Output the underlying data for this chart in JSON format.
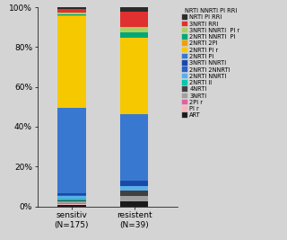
{
  "categories": [
    "sensitiv\n(N=175)",
    "resistent\n(N=39)"
  ],
  "legend_title": "NRTI NNRTI PI RRI",
  "segments_bottom_to_top": [
    {
      "label": "ART",
      "color": "#1a1a1a",
      "s": 0.6,
      "r": 2.6
    },
    {
      "label": "PI r",
      "color": "#f5b8c0",
      "s": 0.6,
      "r": 0.0
    },
    {
      "label": "2PI r",
      "color": "#e060a0",
      "s": 0.6,
      "r": 0.0
    },
    {
      "label": "3NRTI",
      "color": "#a0a0a0",
      "s": 0.6,
      "r": 2.6
    },
    {
      "label": "4NRTI",
      "color": "#404040",
      "s": 0.6,
      "r": 2.6
    },
    {
      "label": "2NRTI II",
      "color": "#00c8b0",
      "s": 1.1,
      "r": 0.0
    },
    {
      "label": "2NRTI NNRTI",
      "color": "#5aaeea",
      "s": 1.1,
      "r": 2.6
    },
    {
      "label": "2NRTI 2NNRTI",
      "color": "#2a60c8",
      "s": 0.6,
      "r": 0.0
    },
    {
      "label": "3NRTI NNRTI",
      "color": "#1a4aa8",
      "s": 0.6,
      "r": 2.6
    },
    {
      "label": "2NRTI PI",
      "color": "#3878d0",
      "s": 43.0,
      "r": 33.3
    },
    {
      "label": "2NRTI PI r",
      "color": "#f5c800",
      "s": 46.0,
      "r": 38.5
    },
    {
      "label": "2NRTI 2PI",
      "color": "#f0a000",
      "s": 0.6,
      "r": 0.0
    },
    {
      "label": "2NRTI NNRTI  PI",
      "color": "#00a878",
      "s": 0.6,
      "r": 2.6
    },
    {
      "label": "3NRTI NNRTI  PI r",
      "color": "#a8d060",
      "s": 0.6,
      "r": 2.6
    },
    {
      "label": "3NRTI RRI",
      "color": "#e03030",
      "s": 2.0,
      "r": 7.7
    },
    {
      "label": "NRTI PI RRI",
      "color": "#2a2a2a",
      "s": 0.8,
      "r": 2.6
    }
  ],
  "background_color": "#d4d4d4",
  "bar_width": 0.45,
  "x_positions": [
    0,
    1
  ],
  "figsize": [
    3.2,
    2.67
  ],
  "dpi": 100
}
